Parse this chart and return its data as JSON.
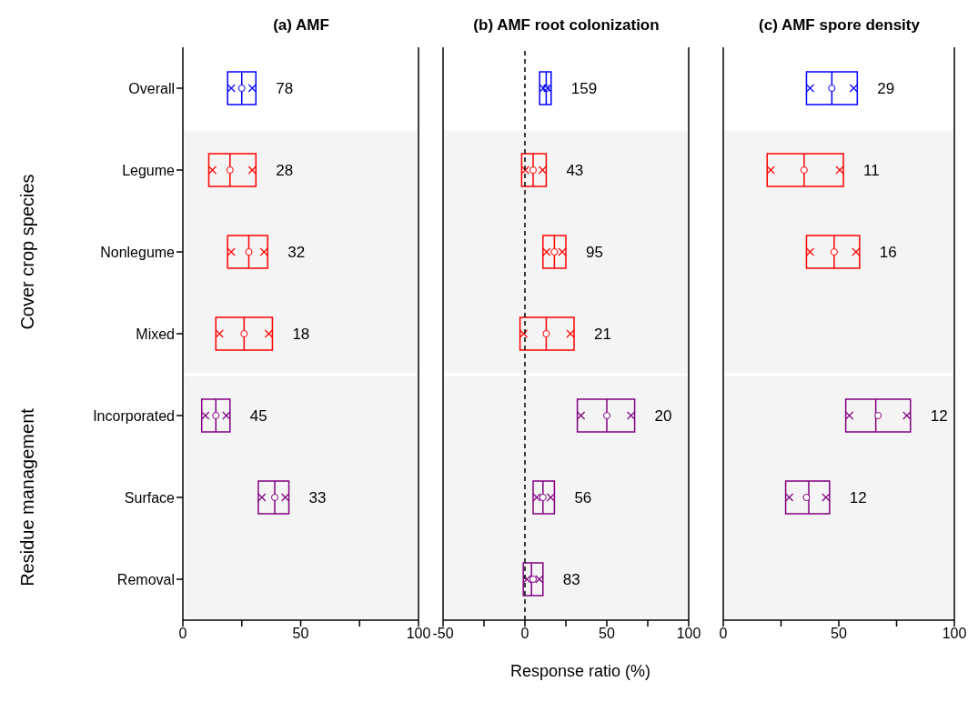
{
  "chart_data": [
    {
      "type": "box",
      "title": "(a) AMF",
      "orientation": "horizontal",
      "categories": [
        "Overall",
        "Legume",
        "Nonlegume",
        "Mixed",
        "Incorporated",
        "Surface",
        "Removal"
      ],
      "xlim": [
        0,
        100
      ],
      "xticks": [
        0,
        {
          "value": 25,
          "label": null
        },
        50,
        {
          "value": 75,
          "label": null
        },
        100
      ],
      "marker": "cross",
      "annotations": [
        "Cover crop species",
        "Residue management"
      ],
      "bands": [
        {
          "axis": "y",
          "from": "Legume",
          "to": "Mixed",
          "color": "#f4f4f4"
        },
        {
          "axis": "y",
          "from": "Incorporated",
          "to": "Removal",
          "color": "#f4f4f4"
        }
      ],
      "series": [
        {
          "color": "#0000ff",
          "boxes": [
            {
              "low": 19,
              "q1": 19,
              "median": 25,
              "q3": 31,
              "high": 31,
              "mean": 25
            },
            null,
            null,
            null,
            null,
            null,
            null
          ],
          "value_labels": [
            "78",
            null,
            null,
            null,
            null,
            null,
            null
          ]
        },
        {
          "color": "#ff0000",
          "boxes": [
            null,
            {
              "low": 11,
              "q1": 11,
              "median": 20,
              "q3": 31,
              "high": 31,
              "mean": 20
            },
            {
              "low": 19,
              "q1": 19,
              "median": 28,
              "q3": 36,
              "high": 36,
              "mean": 28
            },
            {
              "low": 14,
              "q1": 14,
              "median": 26,
              "q3": 38,
              "high": 38,
              "mean": 26
            },
            null,
            null,
            null
          ],
          "value_labels": [
            null,
            "28",
            "32",
            "18",
            null,
            null,
            null
          ]
        },
        {
          "color": "#800080",
          "boxes": [
            null,
            null,
            null,
            null,
            {
              "low": 8,
              "q1": 8,
              "median": 14,
              "q3": 20,
              "high": 20,
              "mean": 14
            },
            {
              "low": 32,
              "q1": 32,
              "median": 39,
              "q3": 45,
              "high": 45,
              "mean": 39
            },
            null
          ],
          "value_labels": [
            null,
            null,
            null,
            null,
            "45",
            "33",
            null
          ]
        }
      ]
    },
    {
      "type": "box",
      "title": "(b) AMF root colonization",
      "xlabel": "Response ratio (%)",
      "orientation": "horizontal",
      "tick_labels": "x",
      "categories": [
        "Overall",
        "Legume",
        "Nonlegume",
        "Mixed",
        "Incorporated",
        "Surface",
        "Removal"
      ],
      "xlim": [
        -50,
        100
      ],
      "xticks": [
        -50,
        {
          "value": -25,
          "label": null
        },
        0,
        {
          "value": 25,
          "label": null
        },
        50,
        {
          "value": 75,
          "label": null
        },
        100
      ],
      "marker": "cross",
      "ref_lines": [
        {
          "axis": "x",
          "value": 0,
          "color": "#000000",
          "line_style": "dashed"
        }
      ],
      "bands": [
        {
          "axis": "y",
          "from": "Legume",
          "to": "Mixed",
          "color": "#f4f4f4"
        },
        {
          "axis": "y",
          "from": "Incorporated",
          "to": "Removal",
          "color": "#f4f4f4"
        }
      ],
      "series": [
        {
          "color": "#0000ff",
          "boxes": [
            {
              "low": 9,
              "q1": 9,
              "median": 13,
              "q3": 16,
              "high": 16,
              "mean": 13
            },
            null,
            null,
            null,
            null,
            null,
            null
          ],
          "value_labels": [
            "159",
            null,
            null,
            null,
            null,
            null,
            null
          ]
        },
        {
          "color": "#ff0000",
          "boxes": [
            null,
            {
              "low": -2,
              "q1": -2,
              "median": 5,
              "q3": 13,
              "high": 13,
              "mean": 5
            },
            {
              "low": 11,
              "q1": 11,
              "median": 18,
              "q3": 25,
              "high": 25,
              "mean": 18
            },
            {
              "low": -3,
              "q1": -3,
              "median": 13,
              "q3": 30,
              "high": 30,
              "mean": 13
            },
            null,
            null,
            null
          ],
          "value_labels": [
            null,
            "43",
            "95",
            "21",
            null,
            null,
            null
          ]
        },
        {
          "color": "#800080",
          "boxes": [
            null,
            null,
            null,
            null,
            {
              "low": 32,
              "q1": 32,
              "median": 50,
              "q3": 67,
              "high": 67,
              "mean": 50
            },
            {
              "low": 5,
              "q1": 5,
              "median": 11,
              "q3": 18,
              "high": 18,
              "mean": 11
            },
            {
              "low": -1,
              "q1": -1,
              "median": 4,
              "q3": 11,
              "high": 11,
              "mean": 5
            }
          ],
          "value_labels": [
            null,
            null,
            null,
            null,
            "20",
            "56",
            "83"
          ]
        }
      ]
    },
    {
      "type": "box",
      "title": "(c) AMF spore density",
      "orientation": "horizontal",
      "tick_labels": "x",
      "categories": [
        "Overall",
        "Legume",
        "Nonlegume",
        "Mixed",
        "Incorporated",
        "Surface",
        "Removal"
      ],
      "xlim": [
        0,
        100
      ],
      "xticks": [
        0,
        {
          "value": 25,
          "label": null
        },
        50,
        {
          "value": 75,
          "label": null
        },
        100
      ],
      "marker": "cross",
      "bands": [
        {
          "axis": "y",
          "from": "Legume",
          "to": "Mixed",
          "color": "#f4f4f4"
        },
        {
          "axis": "y",
          "from": "Incorporated",
          "to": "Removal",
          "color": "#f4f4f4"
        }
      ],
      "series": [
        {
          "color": "#0000ff",
          "boxes": [
            {
              "low": 36,
              "q1": 36,
              "median": 47,
              "q3": 58,
              "high": 58,
              "mean": 47
            },
            null,
            null,
            null,
            null,
            null,
            null
          ],
          "value_labels": [
            "29",
            null,
            null,
            null,
            null,
            null,
            null
          ]
        },
        {
          "color": "#ff0000",
          "boxes": [
            null,
            {
              "low": 19,
              "q1": 19,
              "median": 35,
              "q3": 52,
              "high": 52,
              "mean": 35
            },
            {
              "low": 36,
              "q1": 36,
              "median": 48,
              "q3": 59,
              "high": 59,
              "mean": 48
            },
            null,
            null,
            null,
            null
          ],
          "value_labels": [
            null,
            "11",
            "16",
            null,
            null,
            null,
            null
          ]
        },
        {
          "color": "#800080",
          "boxes": [
            null,
            null,
            null,
            null,
            {
              "low": 53,
              "q1": 53,
              "median": 66,
              "q3": 81,
              "high": 81,
              "mean": 67
            },
            {
              "low": 27,
              "q1": 27,
              "median": 37,
              "q3": 46,
              "high": 46,
              "mean": 36
            },
            null
          ],
          "value_labels": [
            null,
            null,
            null,
            null,
            "12",
            "12",
            null
          ]
        }
      ]
    }
  ]
}
